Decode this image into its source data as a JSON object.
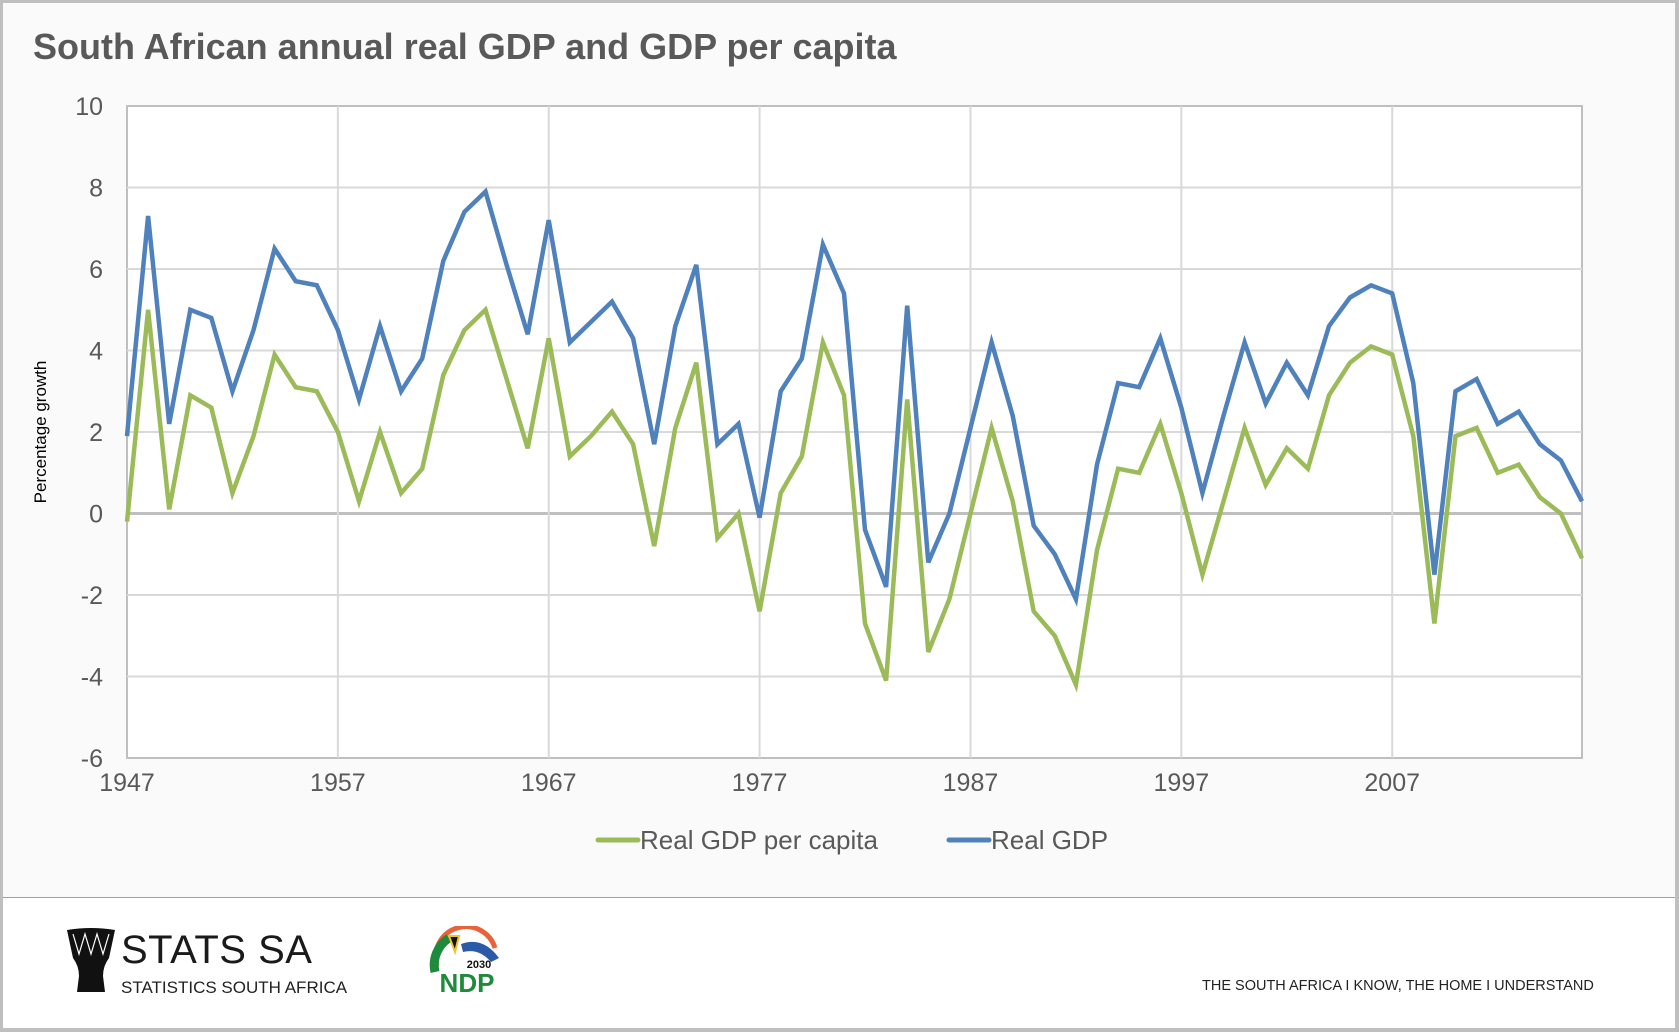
{
  "title": "South African annual real GDP and GDP per capita",
  "footer": {
    "org_name": "STATS SA",
    "org_subtitle": "STATISTICS SOUTH AFRICA",
    "ndp_year": "2030",
    "ndp_label": "NDP",
    "tagline": "THE SOUTH AFRICA I KNOW, THE HOME I UNDERSTAND"
  },
  "colors": {
    "real_gdp": "#4f81bd",
    "real_gdp_per_capita": "#9bbb59",
    "title": "#595959"
  },
  "chart_data": {
    "type": "line",
    "title": "South African annual real GDP and GDP per capita",
    "xlabel": "",
    "ylabel": "Percentage growth",
    "ylim": [
      -6,
      10
    ],
    "yticks": [
      10,
      8,
      6,
      4,
      2,
      0,
      -2,
      -4,
      -6
    ],
    "xlim": [
      1947,
      2016
    ],
    "xticks": [
      1947,
      1957,
      1967,
      1977,
      1987,
      1997,
      2007
    ],
    "grid": true,
    "legend_position": "bottom",
    "x": [
      1947,
      1948,
      1949,
      1950,
      1951,
      1952,
      1953,
      1954,
      1955,
      1956,
      1957,
      1958,
      1959,
      1960,
      1961,
      1962,
      1963,
      1964,
      1965,
      1966,
      1967,
      1968,
      1969,
      1970,
      1971,
      1972,
      1973,
      1974,
      1975,
      1976,
      1977,
      1978,
      1979,
      1980,
      1981,
      1982,
      1983,
      1984,
      1985,
      1986,
      1987,
      1988,
      1989,
      1990,
      1991,
      1992,
      1993,
      1994,
      1995,
      1996,
      1997,
      1998,
      1999,
      2000,
      2001,
      2002,
      2003,
      2004,
      2005,
      2006,
      2007,
      2008,
      2009,
      2010,
      2011,
      2012,
      2013,
      2014,
      2015,
      2016
    ],
    "series": [
      {
        "name": "Real GDP per capita",
        "color": "#9bbb59",
        "values": [
          -0.2,
          5.0,
          0.1,
          2.9,
          2.6,
          0.5,
          1.9,
          3.9,
          3.1,
          3.0,
          2.0,
          0.3,
          2.0,
          0.5,
          1.1,
          3.4,
          4.5,
          5.0,
          3.3,
          1.6,
          4.3,
          1.4,
          1.9,
          2.5,
          1.7,
          -0.8,
          2.1,
          3.7,
          -0.6,
          0.0,
          -2.4,
          0.5,
          1.4,
          4.2,
          2.9,
          -2.7,
          -4.1,
          2.8,
          -3.4,
          -2.1,
          0.0,
          2.1,
          0.3,
          -2.4,
          -3.0,
          -4.2,
          -0.9,
          1.1,
          1.0,
          2.2,
          0.5,
          -1.5,
          0.3,
          2.1,
          0.7,
          1.6,
          1.1,
          2.9,
          3.7,
          4.1,
          3.9,
          1.9,
          -2.7,
          1.9,
          2.1,
          1.0,
          1.2,
          0.4,
          0.0,
          -1.1
        ]
      },
      {
        "name": "Real GDP",
        "color": "#4f81bd",
        "values": [
          1.9,
          7.3,
          2.2,
          5.0,
          4.8,
          3.0,
          4.5,
          6.5,
          5.7,
          5.6,
          4.5,
          2.8,
          4.6,
          3.0,
          3.8,
          6.2,
          7.4,
          7.9,
          6.1,
          4.4,
          7.2,
          4.2,
          4.7,
          5.2,
          4.3,
          1.7,
          4.6,
          6.1,
          1.7,
          2.2,
          -0.1,
          3.0,
          3.8,
          6.6,
          5.4,
          -0.4,
          -1.8,
          5.1,
          -1.2,
          0.0,
          2.1,
          4.2,
          2.4,
          -0.3,
          -1.0,
          -2.1,
          1.2,
          3.2,
          3.1,
          4.3,
          2.6,
          0.5,
          2.4,
          4.2,
          2.7,
          3.7,
          2.9,
          4.6,
          5.3,
          5.6,
          5.4,
          3.2,
          -1.5,
          3.0,
          3.3,
          2.2,
          2.5,
          1.7,
          1.3,
          0.3
        ]
      }
    ]
  }
}
